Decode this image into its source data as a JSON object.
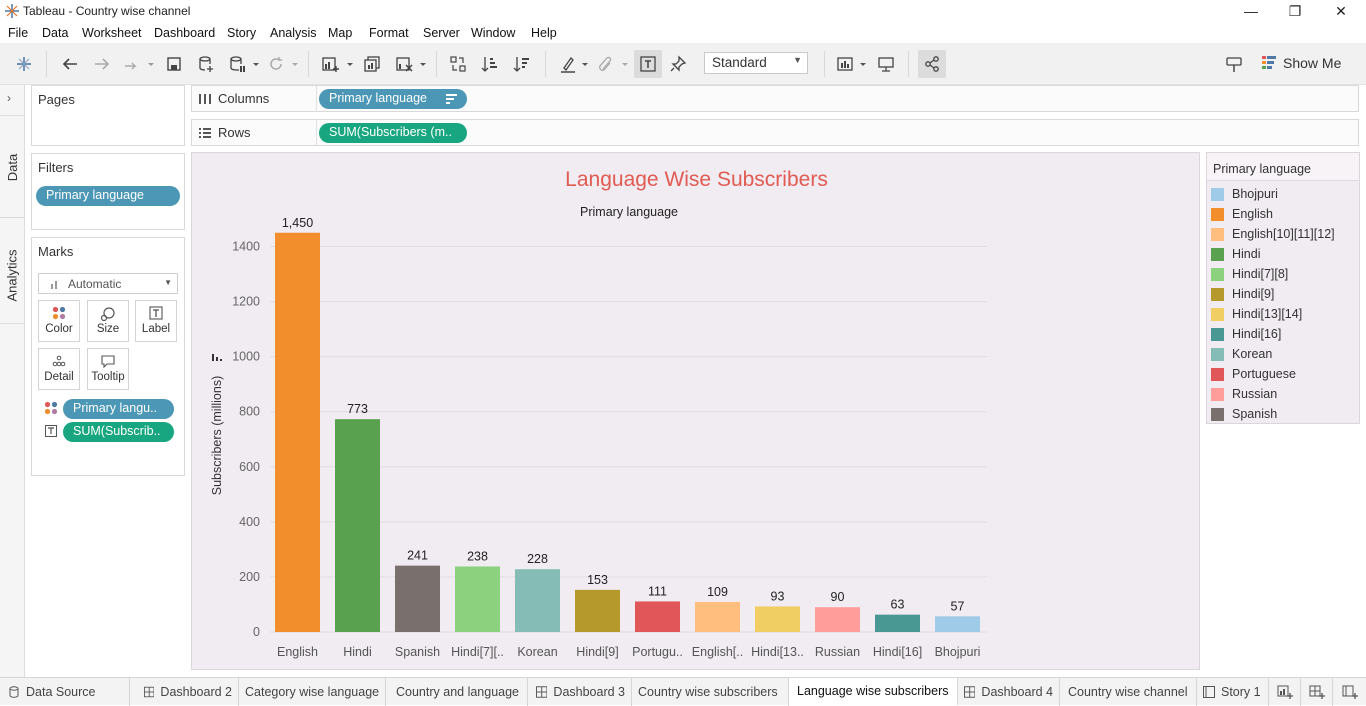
{
  "window": {
    "title": "Tableau - Country wise channel",
    "minimize": "—",
    "restore": "❐",
    "close": "✕"
  },
  "menu": [
    "File",
    "Data",
    "Worksheet",
    "Dashboard",
    "Story",
    "Analysis",
    "Map",
    "Format",
    "Server",
    "Window",
    "Help"
  ],
  "toolbar": {
    "fit_select": "Standard",
    "show_me": "Show Me"
  },
  "side_tabs": {
    "data": "Data",
    "analytics": "Analytics"
  },
  "pages": {
    "title": "Pages"
  },
  "filters": {
    "title": "Filters",
    "pill": "Primary language"
  },
  "marks": {
    "title": "Marks",
    "type": "Automatic",
    "buttons": [
      "Color",
      "Size",
      "Label",
      "Detail",
      "Tooltip"
    ],
    "pills": [
      "Primary langu..",
      "SUM(Subscrib.."
    ]
  },
  "shelves": {
    "columns_label": "Columns",
    "columns_pill": "Primary language",
    "rows_label": "Rows",
    "rows_pill": "SUM(Subscribers (m.."
  },
  "chart_data": {
    "type": "bar",
    "title": "Language Wise Subscribers",
    "column_header": "Primary language",
    "ylabel": "Subscribers (millions)",
    "ylim": [
      0,
      1500
    ],
    "yticks": [
      0,
      200,
      400,
      600,
      800,
      1000,
      1200,
      1400
    ],
    "grid": true,
    "categories": [
      "English",
      "Hindi",
      "Spanish",
      "Hindi[7][..",
      "Korean",
      "Hindi[9]",
      "Portugu..",
      "English[..",
      "Hindi[13..",
      "Russian",
      "Hindi[16]",
      "Bhojpuri"
    ],
    "values": [
      1450,
      773,
      241,
      238,
      228,
      153,
      111,
      109,
      93,
      90,
      63,
      57
    ],
    "value_labels": [
      "1,450",
      "773",
      "241",
      "238",
      "228",
      "153",
      "111",
      "109",
      "93",
      "90",
      "63",
      "57"
    ],
    "colors": [
      "#f28e2b",
      "#59a14f",
      "#79706e",
      "#8cd17d",
      "#86bcb6",
      "#b6992d",
      "#e15759",
      "#ffbe7d",
      "#f1ce63",
      "#ff9d9a",
      "#499894",
      "#a0cbe8"
    ]
  },
  "legend": {
    "title": "Primary language",
    "items": [
      {
        "label": "Bhojpuri",
        "color": "#a0cbe8"
      },
      {
        "label": "English",
        "color": "#f28e2b"
      },
      {
        "label": "English[10][11][12]",
        "color": "#ffbe7d"
      },
      {
        "label": "Hindi",
        "color": "#59a14f"
      },
      {
        "label": "Hindi[7][8]",
        "color": "#8cd17d"
      },
      {
        "label": "Hindi[9]",
        "color": "#b6992d"
      },
      {
        "label": "Hindi[13][14]",
        "color": "#f1ce63"
      },
      {
        "label": "Hindi[16]",
        "color": "#499894"
      },
      {
        "label": "Korean",
        "color": "#86bcb6"
      },
      {
        "label": "Portuguese",
        "color": "#e15759"
      },
      {
        "label": "Russian",
        "color": "#ff9d9a"
      },
      {
        "label": "Spanish",
        "color": "#79706e"
      }
    ]
  },
  "tabs": [
    {
      "label": "Data Source",
      "icon": "database-icon"
    },
    {
      "label": "Dashboard 2",
      "icon": "dashboard-icon"
    },
    {
      "label": "Category wise language",
      "icon": ""
    },
    {
      "label": "Country and language",
      "icon": ""
    },
    {
      "label": "Dashboard 3",
      "icon": "dashboard-icon"
    },
    {
      "label": "Country wise subscribers",
      "icon": ""
    },
    {
      "label": "Language wise subscribers",
      "icon": "",
      "active": true
    },
    {
      "label": "Dashboard 4",
      "icon": "dashboard-icon"
    },
    {
      "label": "Country wise channel",
      "icon": ""
    },
    {
      "label": "Story 1",
      "icon": "story-icon"
    }
  ]
}
